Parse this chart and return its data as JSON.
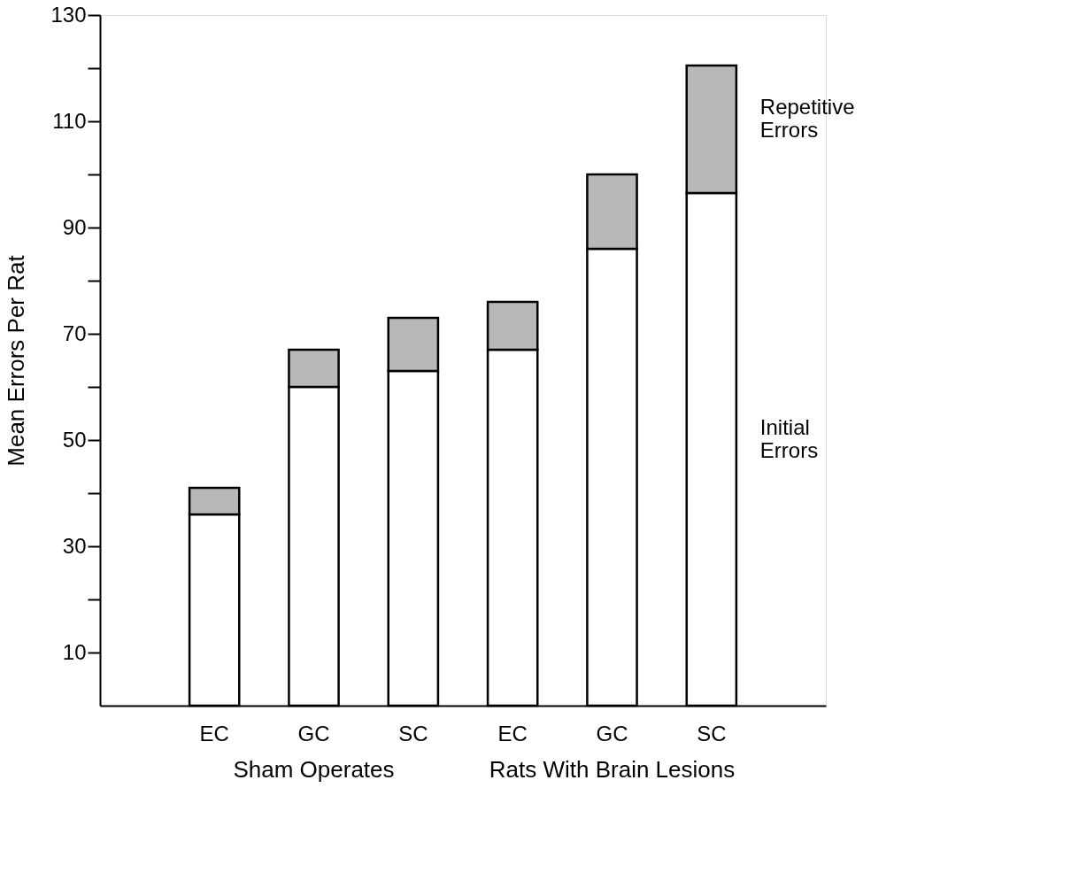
{
  "chart_data": {
    "type": "bar",
    "stacked": true,
    "ylabel": "Mean Errors Per Rat",
    "categories": [
      "EC",
      "GC",
      "SC",
      "EC",
      "GC",
      "SC"
    ],
    "series": [
      {
        "name": "Initial Errors",
        "color": "#ffffff",
        "values": [
          36,
          60,
          63,
          67,
          86,
          96.5
        ]
      },
      {
        "name": "Repetitive Errors",
        "color": "#b8b8b8",
        "values": [
          5,
          7,
          10,
          9,
          14,
          24
        ]
      }
    ],
    "ylim": [
      0,
      130
    ],
    "yticks": [
      10,
      {
        "value": 20,
        "label": null
      },
      30,
      {
        "value": 40,
        "label": null
      },
      50,
      {
        "value": 60,
        "label": null
      },
      70,
      {
        "value": 80,
        "label": null
      },
      90,
      {
        "value": 100,
        "label": null
      },
      110,
      {
        "value": 120,
        "label": null
      },
      130
    ],
    "annotations": [
      "Sham Operates",
      "Rats With Brain Lesions"
    ],
    "grid": false,
    "legend": "right"
  }
}
